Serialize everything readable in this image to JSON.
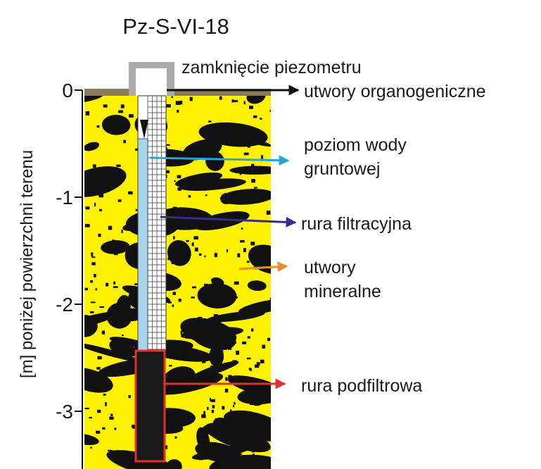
{
  "title": "Pz-S-VI-18",
  "axis": {
    "label": "[m] poniżej powierzchni terenu",
    "ticks": [
      0,
      -1,
      -2,
      -3
    ]
  },
  "labels": {
    "cap": "zamknięcie piezometru",
    "organic": "utwory organogeniczne",
    "water": [
      "poziom wody",
      "gruntowej"
    ],
    "filter": "rura filtracyjna",
    "mineral": [
      "utwory",
      "mineralne"
    ],
    "subfilter": "rura podfiltrowa"
  }
}
